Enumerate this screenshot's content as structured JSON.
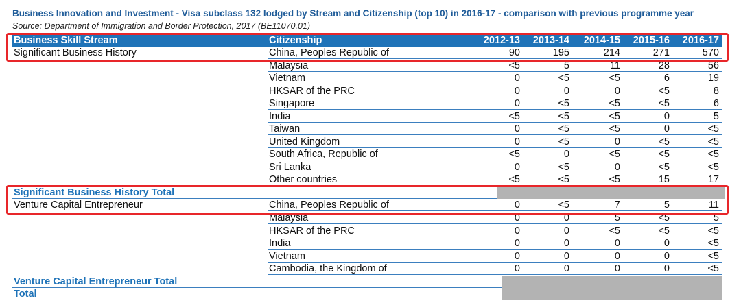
{
  "title": "Business Innovation and Investment - Visa subclass 132 lodged by Stream and Citizenship (top 10) in 2016-17 - comparison with previous programme year",
  "source": "Source: Department of Immigration and Border Protection, 2017 (BE11070.01)",
  "header": {
    "stream": "Business Skill Stream",
    "citizenship": "Citizenship",
    "years": [
      "2012-13",
      "2013-14",
      "2014-15",
      "2015-16",
      "2016-17"
    ]
  },
  "sections": [
    {
      "stream": "Significant Business History",
      "rows": [
        {
          "country": "China, Peoples Republic of",
          "values": [
            "90",
            "195",
            "214",
            "271",
            "570"
          ]
        },
        {
          "country": "Malaysia",
          "values": [
            "<5",
            "5",
            "11",
            "28",
            "56"
          ]
        },
        {
          "country": "Vietnam",
          "values": [
            "0",
            "<5",
            "<5",
            "6",
            "19"
          ]
        },
        {
          "country": "HKSAR of the PRC",
          "values": [
            "0",
            "0",
            "0",
            "<5",
            "8"
          ]
        },
        {
          "country": "Singapore",
          "values": [
            "0",
            "<5",
            "<5",
            "<5",
            "6"
          ]
        },
        {
          "country": "India",
          "values": [
            "<5",
            "<5",
            "<5",
            "0",
            "5"
          ]
        },
        {
          "country": "Taiwan",
          "values": [
            "0",
            "<5",
            "<5",
            "0",
            "<5"
          ]
        },
        {
          "country": "United Kingdom",
          "values": [
            "0",
            "<5",
            "0",
            "<5",
            "<5"
          ]
        },
        {
          "country": "South Africa, Republic of",
          "values": [
            "<5",
            "0",
            "<5",
            "<5",
            "<5"
          ]
        },
        {
          "country": "Sri Lanka",
          "values": [
            "0",
            "<5",
            "0",
            "<5",
            "<5"
          ]
        },
        {
          "country": "Other countries",
          "values": [
            "<5",
            "<5",
            "<5",
            "15",
            "17"
          ]
        }
      ],
      "total_label": "Significant Business History Total"
    },
    {
      "stream": "Venture Capital Entrepreneur",
      "rows": [
        {
          "country": "China, Peoples Republic of",
          "values": [
            "0",
            "<5",
            "7",
            "5",
            "11"
          ]
        },
        {
          "country": "Malaysia",
          "values": [
            "0",
            "0",
            "5",
            "<5",
            "5"
          ]
        },
        {
          "country": "HKSAR of the PRC",
          "values": [
            "0",
            "0",
            "<5",
            "<5",
            "<5"
          ]
        },
        {
          "country": "India",
          "values": [
            "0",
            "0",
            "0",
            "0",
            "<5"
          ]
        },
        {
          "country": "Vietnam",
          "values": [
            "0",
            "0",
            "0",
            "0",
            "<5"
          ]
        },
        {
          "country": "Cambodia, the Kingdom of",
          "values": [
            "0",
            "0",
            "0",
            "0",
            "<5"
          ]
        }
      ],
      "total_label": "Venture Capital Entrepreneur Total"
    }
  ],
  "grand_total_label": "Total",
  "colors": {
    "header_bg": "#1f73b8",
    "accent_text": "#1f73b8",
    "highlight": "#e8262a",
    "grey_fill": "#b3b3b3"
  }
}
